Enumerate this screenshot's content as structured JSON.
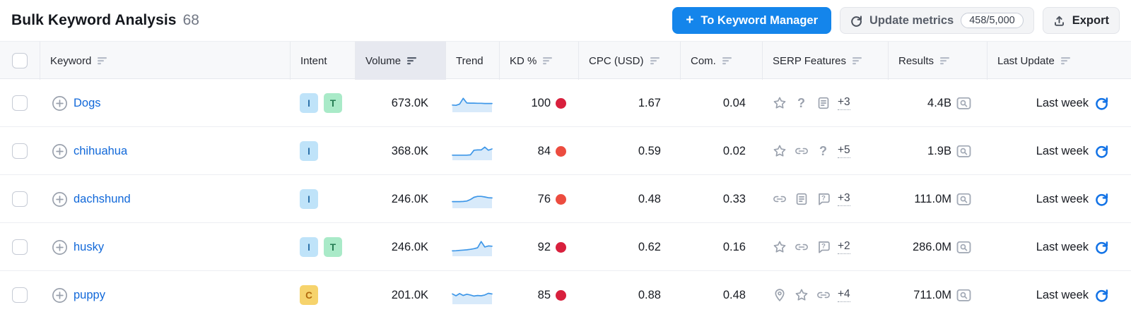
{
  "header": {
    "title": "Bulk Keyword Analysis",
    "count": "68",
    "buttons": {
      "to_keyword_manager": "To Keyword Manager",
      "update_metrics": "Update metrics",
      "update_quota": "458/5,000",
      "export": "Export"
    }
  },
  "colors": {
    "primary_blue": "#1485eb",
    "link_blue": "#1168d9",
    "refresh_blue": "#1373e6",
    "kd_very_hard": "#d8203d",
    "kd_hard": "#ec4c3f",
    "sparkline_line": "#3e97e8",
    "sparkline_fill": "#d8eafa"
  },
  "table": {
    "columns": [
      {
        "key": "select",
        "label": "",
        "sortable": false
      },
      {
        "key": "keyword",
        "label": "Keyword",
        "sortable": true,
        "sorted": false
      },
      {
        "key": "intent",
        "label": "Intent",
        "sortable": false
      },
      {
        "key": "volume",
        "label": "Volume",
        "sortable": true,
        "sorted": true
      },
      {
        "key": "trend",
        "label": "Trend",
        "sortable": false
      },
      {
        "key": "kd",
        "label": "KD %",
        "sortable": true,
        "sorted": false
      },
      {
        "key": "cpc",
        "label": "CPC (USD)",
        "sortable": true,
        "sorted": false
      },
      {
        "key": "com",
        "label": "Com.",
        "sortable": true,
        "sorted": false
      },
      {
        "key": "serp",
        "label": "SERP Features",
        "sortable": true,
        "sorted": false
      },
      {
        "key": "results",
        "label": "Results",
        "sortable": true,
        "sorted": false
      },
      {
        "key": "update",
        "label": "Last Update",
        "sortable": true,
        "sorted": false
      }
    ],
    "rows": [
      {
        "keyword": "Dogs",
        "intents": [
          {
            "label": "I",
            "bg": "#bfe3f9",
            "fg": "#2a6fa8"
          },
          {
            "label": "T",
            "bg": "#a9eac8",
            "fg": "#237b52"
          }
        ],
        "volume": "673.0K",
        "trend": [
          0.42,
          0.4,
          0.48,
          0.85,
          0.55,
          0.54,
          0.54,
          0.53,
          0.53,
          0.52,
          0.52,
          0.52
        ],
        "kd": "100",
        "kd_color": "#d8203d",
        "cpc": "1.67",
        "com": "0.04",
        "serp_features": [
          "star",
          "question",
          "document"
        ],
        "serp_more": "+3",
        "results": "4.4B",
        "last_update": "Last week"
      },
      {
        "keyword": "chihuahua",
        "intents": [
          {
            "label": "I",
            "bg": "#bfe3f9",
            "fg": "#2a6fa8"
          }
        ],
        "volume": "368.0K",
        "trend": [
          0.28,
          0.28,
          0.28,
          0.28,
          0.28,
          0.3,
          0.6,
          0.62,
          0.62,
          0.8,
          0.6,
          0.68
        ],
        "kd": "84",
        "kd_color": "#ec4c3f",
        "cpc": "0.59",
        "com": "0.02",
        "serp_features": [
          "star",
          "link",
          "question"
        ],
        "serp_more": "+5",
        "results": "1.9B",
        "last_update": "Last week"
      },
      {
        "keyword": "dachshund",
        "intents": [
          {
            "label": "I",
            "bg": "#bfe3f9",
            "fg": "#2a6fa8"
          }
        ],
        "volume": "246.0K",
        "trend": [
          0.38,
          0.38,
          0.38,
          0.39,
          0.42,
          0.52,
          0.66,
          0.72,
          0.72,
          0.68,
          0.63,
          0.62
        ],
        "kd": "76",
        "kd_color": "#ec4c3f",
        "cpc": "0.48",
        "com": "0.33",
        "serp_features": [
          "link",
          "document",
          "faq"
        ],
        "serp_more": "+3",
        "results": "111.0M",
        "last_update": "Last week"
      },
      {
        "keyword": "husky",
        "intents": [
          {
            "label": "I",
            "bg": "#bfe3f9",
            "fg": "#2a6fa8"
          },
          {
            "label": "T",
            "bg": "#a9eac8",
            "fg": "#237b52"
          }
        ],
        "volume": "246.0K",
        "trend": [
          0.3,
          0.31,
          0.33,
          0.35,
          0.37,
          0.4,
          0.44,
          0.5,
          0.9,
          0.55,
          0.62,
          0.6
        ],
        "kd": "92",
        "kd_color": "#d8203d",
        "cpc": "0.62",
        "com": "0.16",
        "serp_features": [
          "star",
          "link",
          "faq"
        ],
        "serp_more": "+2",
        "results": "286.0M",
        "last_update": "Last week"
      },
      {
        "keyword": "puppy",
        "intents": [
          {
            "label": "C",
            "bg": "#f6d36c",
            "fg": "#b26b0f"
          }
        ],
        "volume": "201.0K",
        "trend": [
          0.62,
          0.5,
          0.64,
          0.52,
          0.6,
          0.55,
          0.48,
          0.52,
          0.5,
          0.55,
          0.66,
          0.62
        ],
        "kd": "85",
        "kd_color": "#d8203d",
        "cpc": "0.88",
        "com": "0.48",
        "serp_features": [
          "pin",
          "star",
          "link"
        ],
        "serp_more": "+4",
        "results": "711.0M",
        "last_update": "Last week"
      }
    ]
  }
}
